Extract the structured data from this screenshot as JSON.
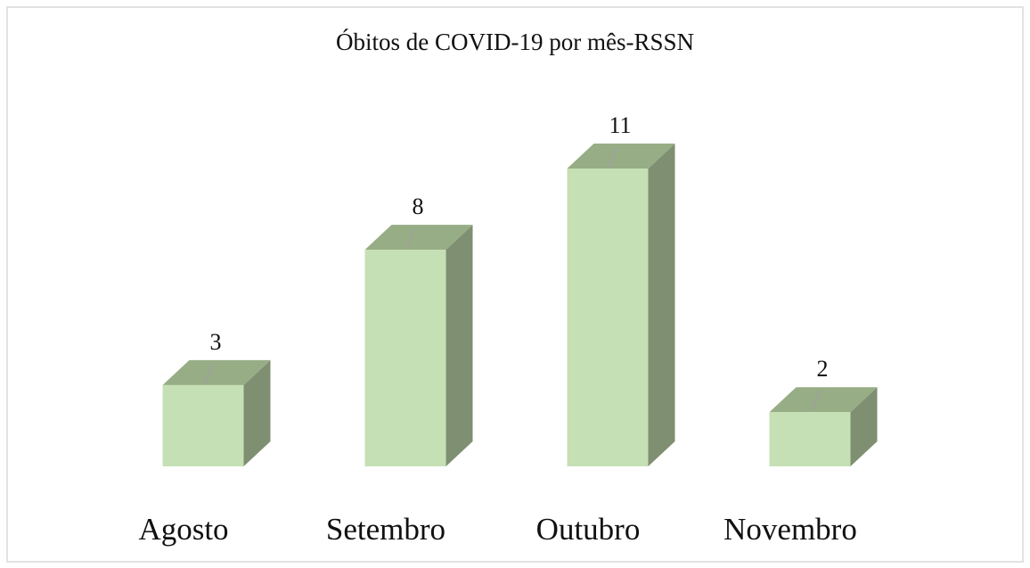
{
  "chart_data": {
    "type": "bar3d",
    "title": "Óbitos de COVID-19  por mês-RSSN",
    "categories": [
      "Agosto",
      "Setembro",
      "Outubro",
      "Novembro"
    ],
    "values": [
      3,
      8,
      11,
      2
    ],
    "color": "#c5e0b4"
  }
}
